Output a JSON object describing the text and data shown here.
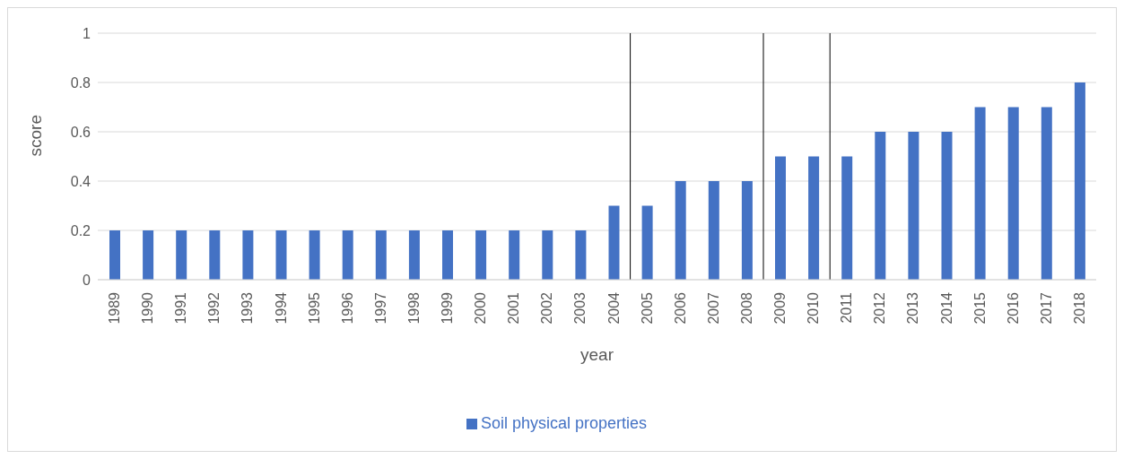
{
  "chart_data": {
    "type": "bar",
    "xlabel": "year",
    "ylabel": "score",
    "x": [
      1989,
      1990,
      1991,
      1992,
      1993,
      1994,
      1995,
      1996,
      1997,
      1998,
      1999,
      2000,
      2001,
      2002,
      2003,
      2004,
      2005,
      2006,
      2007,
      2008,
      2009,
      2010,
      2011,
      2012,
      2013,
      2014,
      2015,
      2016,
      2017,
      2018
    ],
    "xlim": [
      1988.5,
      2018.5
    ],
    "xticks": [
      1989,
      1990,
      1991,
      1992,
      1993,
      1994,
      1995,
      1996,
      1997,
      1998,
      1999,
      2000,
      2001,
      2002,
      2003,
      2004,
      2005,
      2006,
      2007,
      2008,
      2009,
      2010,
      2011,
      2012,
      2013,
      2014,
      2015,
      2016,
      2017,
      2018
    ],
    "series": [
      {
        "name": "Soil physical properties",
        "color": "#4472c4",
        "values": [
          0.2,
          0.2,
          0.2,
          0.2,
          0.2,
          0.2,
          0.2,
          0.2,
          0.2,
          0.2,
          0.2,
          0.2,
          0.2,
          0.2,
          0.2,
          0.3,
          0.3,
          0.4,
          0.4,
          0.4,
          0.5,
          0.5,
          0.5,
          0.6,
          0.6,
          0.6,
          0.7,
          0.7,
          0.7,
          0.8
        ]
      }
    ],
    "ylim": [
      0,
      1
    ],
    "yticks": [
      0,
      0.2,
      0.4,
      0.6,
      0.8,
      1
    ],
    "grid": "y",
    "legend": "bottom",
    "ref_lines": [
      {
        "axis": "x",
        "value": 2004.5,
        "color": "#000000"
      },
      {
        "axis": "x",
        "value": 2008.5,
        "color": "#000000"
      },
      {
        "axis": "x",
        "value": 2010.5,
        "color": "#000000"
      }
    ]
  }
}
